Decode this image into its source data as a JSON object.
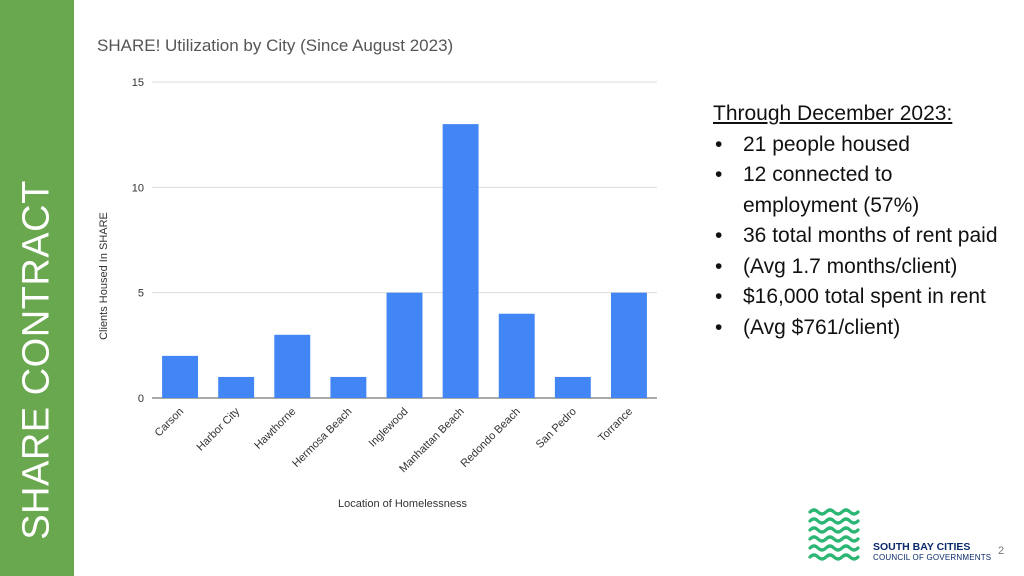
{
  "sidebar": {
    "title": "SHARE CONTRACT",
    "color": "#6aa84f"
  },
  "chart_data": {
    "type": "bar",
    "title": "SHARE! Utilization by City (Since August 2023)",
    "xlabel": "Location of Homelessness",
    "ylabel": "Clients Housed In SHARE",
    "categories": [
      "Carson",
      "Harbor City",
      "Hawthorne",
      "Hermosa Beach",
      "Inglewood",
      "Manhattan Beach",
      "Redondo Beach",
      "San Pedro",
      "Torrance"
    ],
    "values": [
      2,
      1,
      3,
      1,
      5,
      13,
      4,
      1,
      5
    ],
    "ylim": [
      0,
      15
    ],
    "yticks": [
      0,
      5,
      10,
      15
    ],
    "grid": true,
    "bar_color": "#4285f4"
  },
  "stats": {
    "heading": "Through December 2023:",
    "items": [
      "21 people housed",
      "12 connected to employment (57%)",
      "36 total months of rent paid",
      "(Avg 1.7 months/client)",
      "$16,000 total spent in rent",
      "(Avg $761/client)"
    ]
  },
  "logo": {
    "line1": "SOUTH BAY CITIES",
    "line2": "COUNCIL OF GOVERNMENTS",
    "wave_color": "#2bb673",
    "text_color": "#0b2a6b"
  },
  "page_number": "2"
}
